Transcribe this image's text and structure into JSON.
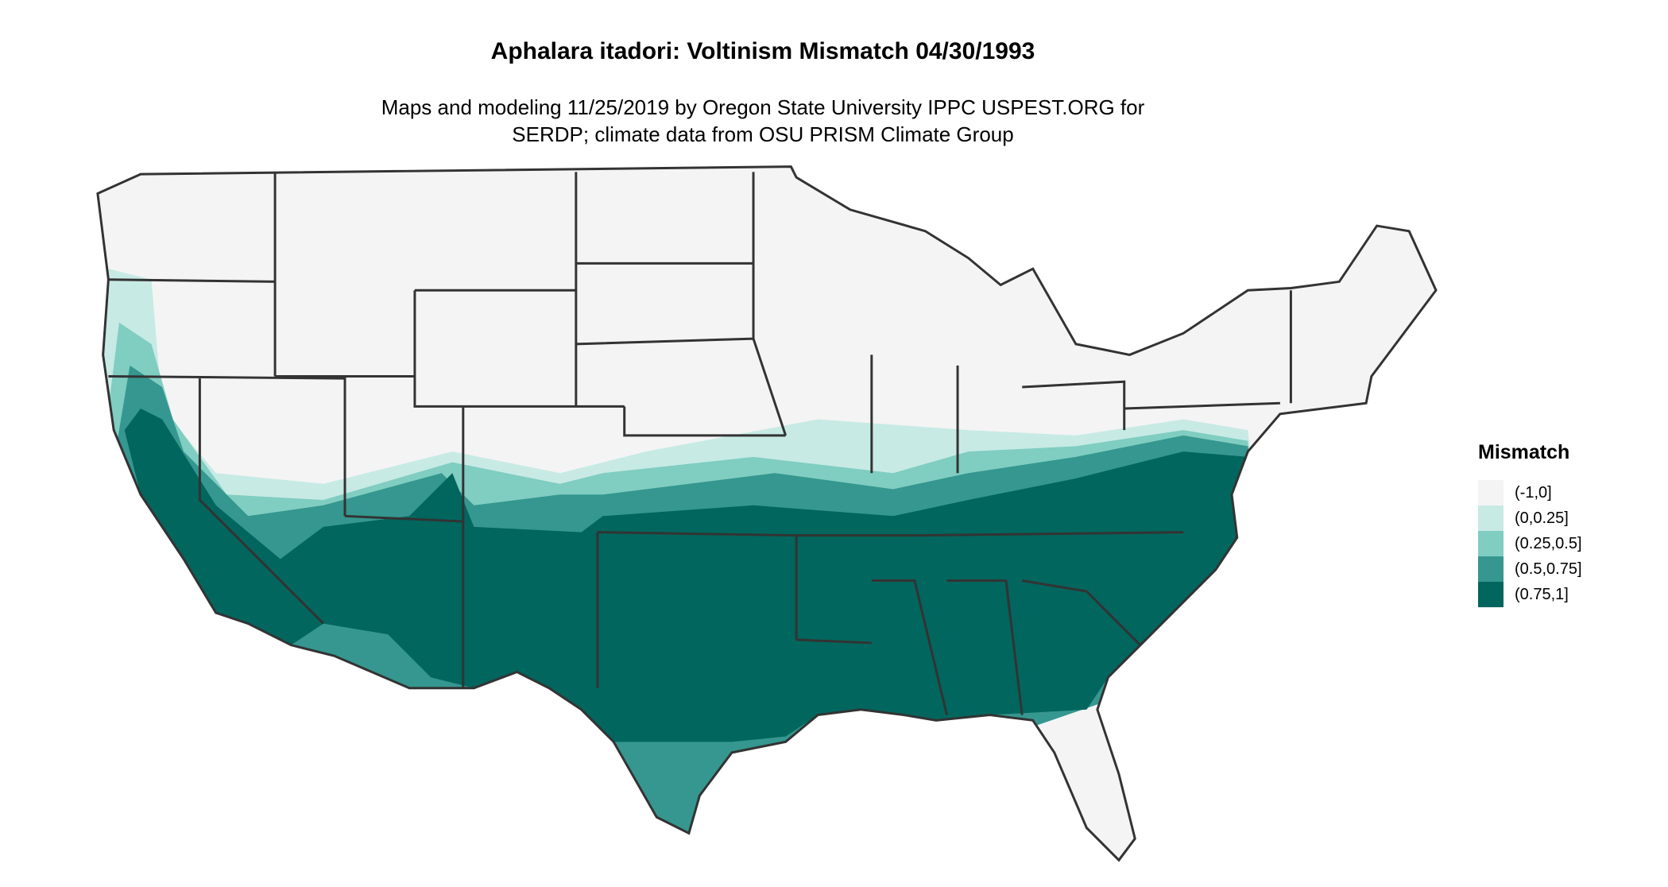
{
  "title": "Aphalara itadori: Voltinism Mismatch 04/30/1993",
  "subtitle_line1": "Maps and modeling 11/25/2019 by Oregon State University IPPC USPEST.ORG for",
  "subtitle_line2": "SERDP; climate data from OSU PRISM Climate Group",
  "legend": {
    "title": "Mismatch",
    "items": [
      {
        "label": "(-1,0]",
        "color": "#f4f4f4"
      },
      {
        "label": "(0,0.25]",
        "color": "#c7eae4"
      },
      {
        "label": "(0.25,0.5]",
        "color": "#80cdc1"
      },
      {
        "label": "(0.5,0.75]",
        "color": "#35978f"
      },
      {
        "label": "(0.75,1]",
        "color": "#01665e"
      }
    ]
  },
  "colors": {
    "border": "#333333",
    "land_default": "#f4f4f4"
  }
}
